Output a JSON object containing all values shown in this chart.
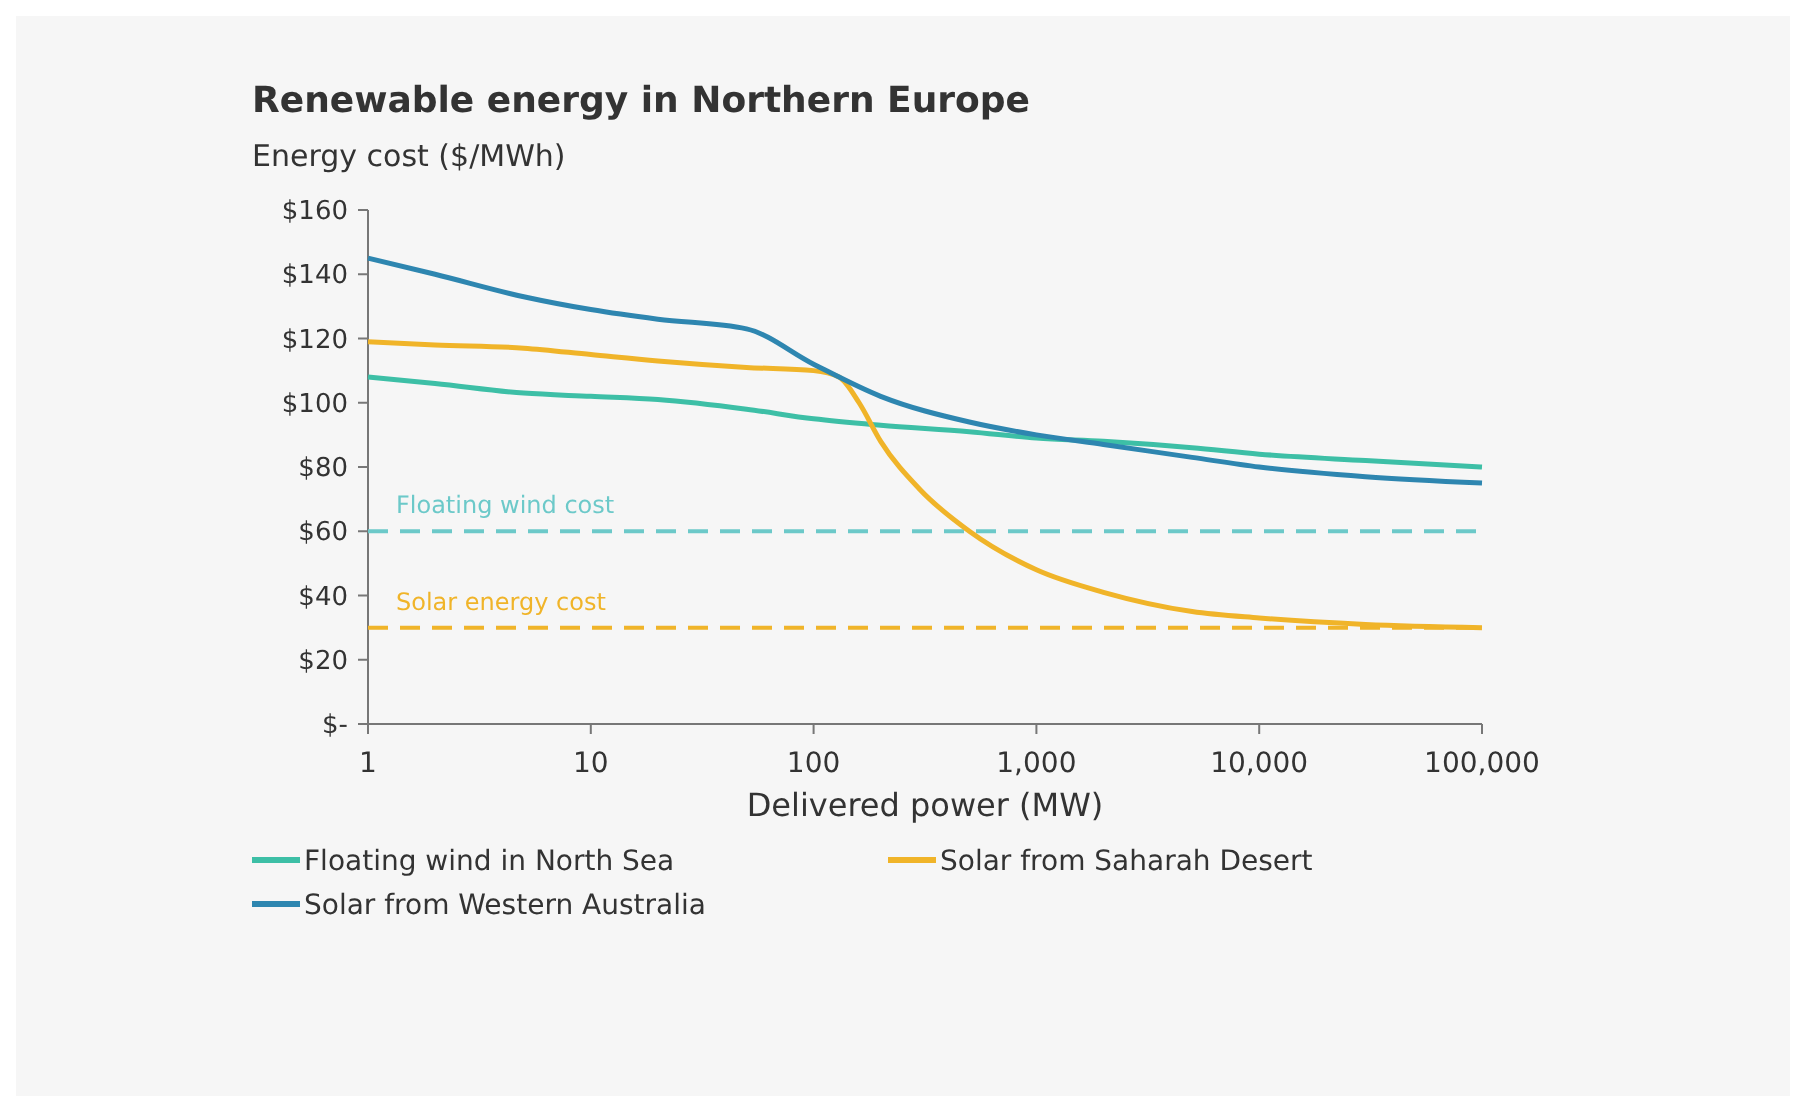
{
  "chart_data": {
    "type": "line",
    "title": "Renewable energy in Northern Europe",
    "ylabel": "Energy cost ($/MWh)",
    "xlabel": "Delivered power (MW)",
    "log": "x",
    "xlim": [
      1,
      100000
    ],
    "xticks": [
      1,
      10,
      100,
      {
        "value": 1000,
        "label": "1,000"
      },
      {
        "value": 10000,
        "label": "10,000"
      },
      {
        "value": 100000,
        "label": "100,000"
      }
    ],
    "ylim": [
      0,
      160
    ],
    "yticks": [
      {
        "value": 0,
        "label": "$-"
      },
      {
        "value": 20,
        "label": "$20"
      },
      {
        "value": 40,
        "label": "$40"
      },
      {
        "value": 60,
        "label": "$60"
      },
      {
        "value": 80,
        "label": "$80"
      },
      {
        "value": 100,
        "label": "$100"
      },
      {
        "value": 120,
        "label": "$120"
      },
      {
        "value": 140,
        "label": "$140"
      },
      {
        "value": 160,
        "label": "$160"
      }
    ],
    "grid": false,
    "legend": "bottom",
    "line_style": "solid",
    "series": [
      {
        "name": "Floating wind in North Sea",
        "color": "#3dbfa6",
        "x": [
          1,
          2,
          5,
          10,
          20,
          50,
          100,
          200,
          500,
          1000,
          2000,
          5000,
          10000,
          30000,
          100000
        ],
        "values": [
          108,
          106,
          103,
          102,
          101,
          98,
          95,
          93,
          91,
          89,
          88,
          86,
          84,
          82,
          80
        ]
      },
      {
        "name": "Solar from Saharah Desert",
        "color": "#f0b429",
        "x": [
          1,
          2,
          5,
          10,
          20,
          50,
          100,
          130,
          160,
          200,
          300,
          500,
          1000,
          2000,
          5000,
          10000,
          30000,
          100000
        ],
        "values": [
          119,
          118,
          117,
          115,
          113,
          111,
          110,
          108,
          100,
          88,
          73,
          60,
          48,
          41,
          35,
          33,
          31,
          30
        ]
      },
      {
        "name": "Solar from Western Australia",
        "color": "#2e86b0",
        "x": [
          1,
          2,
          5,
          10,
          20,
          50,
          100,
          200,
          500,
          1000,
          2000,
          5000,
          10000,
          30000,
          100000
        ],
        "values": [
          145,
          140,
          133,
          129,
          126,
          123,
          112,
          102,
          94,
          90,
          87,
          83,
          80,
          77,
          75
        ]
      }
    ],
    "ref_lines": [
      {
        "axis": "y",
        "value": 60,
        "label": "Floating wind cost",
        "color": "#6cc9c9",
        "line_style": "dashed"
      },
      {
        "axis": "y",
        "value": 30,
        "label": "Solar energy cost",
        "color": "#f0b429",
        "line_style": "dashed"
      }
    ]
  }
}
